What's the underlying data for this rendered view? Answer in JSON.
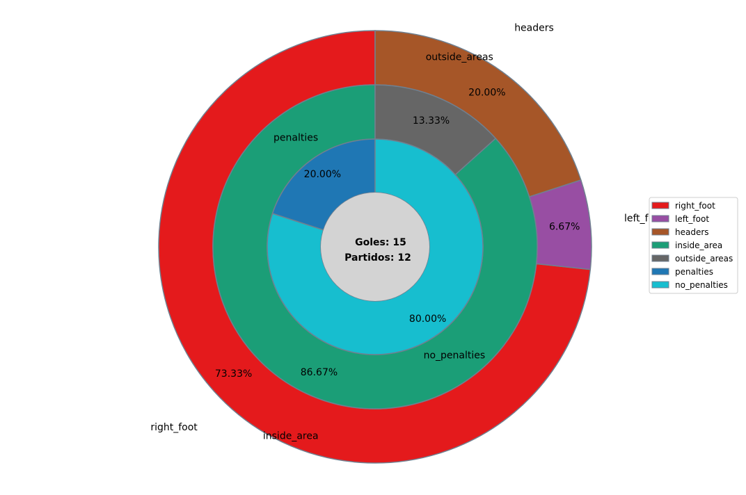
{
  "chart_data": {
    "type": "pie",
    "rings": [
      {
        "name": "",
        "slices": [
          {
            "label": "right_foot",
            "value": 73.33,
            "pct_label": "73.33%",
            "color": "#e41a1c"
          },
          {
            "label": "left_foot",
            "value": 6.67,
            "pct_label": "6.67%",
            "color": "#984ea3"
          },
          {
            "label": "headers",
            "value": 20.0,
            "pct_label": "20.00%",
            "color": "#a65628"
          }
        ]
      },
      {
        "name": "",
        "slices": [
          {
            "label": "inside_area",
            "value": 86.67,
            "pct_label": "86.67%",
            "color": "#1b9e77"
          },
          {
            "label": "outside_areas",
            "value": 13.33,
            "pct_label": "13.33%",
            "color": "#666666"
          }
        ]
      },
      {
        "name": "",
        "slices": [
          {
            "label": "penalties",
            "value": 20.0,
            "pct_label": "20.00%",
            "color": "#1f77b4"
          },
          {
            "label": "no_penalties",
            "value": 80.0,
            "pct_label": "80.00%",
            "color": "#17becf"
          }
        ]
      }
    ],
    "center": {
      "line1": "Goles: 15",
      "line2": "Partidos: 12",
      "color": "#d3d3d3"
    },
    "legend": {
      "position": "right",
      "entries": [
        {
          "label": "right_foot",
          "color": "#e41a1c"
        },
        {
          "label": "left_foot",
          "color": "#984ea3"
        },
        {
          "label": "headers",
          "color": "#a65628"
        },
        {
          "label": "inside_area",
          "color": "#1b9e77"
        },
        {
          "label": "outside_areas",
          "color": "#666666"
        },
        {
          "label": "penalties",
          "color": "#1f77b4"
        },
        {
          "label": "no_penalties",
          "color": "#17becf"
        }
      ]
    },
    "edge_color": "#708090"
  }
}
